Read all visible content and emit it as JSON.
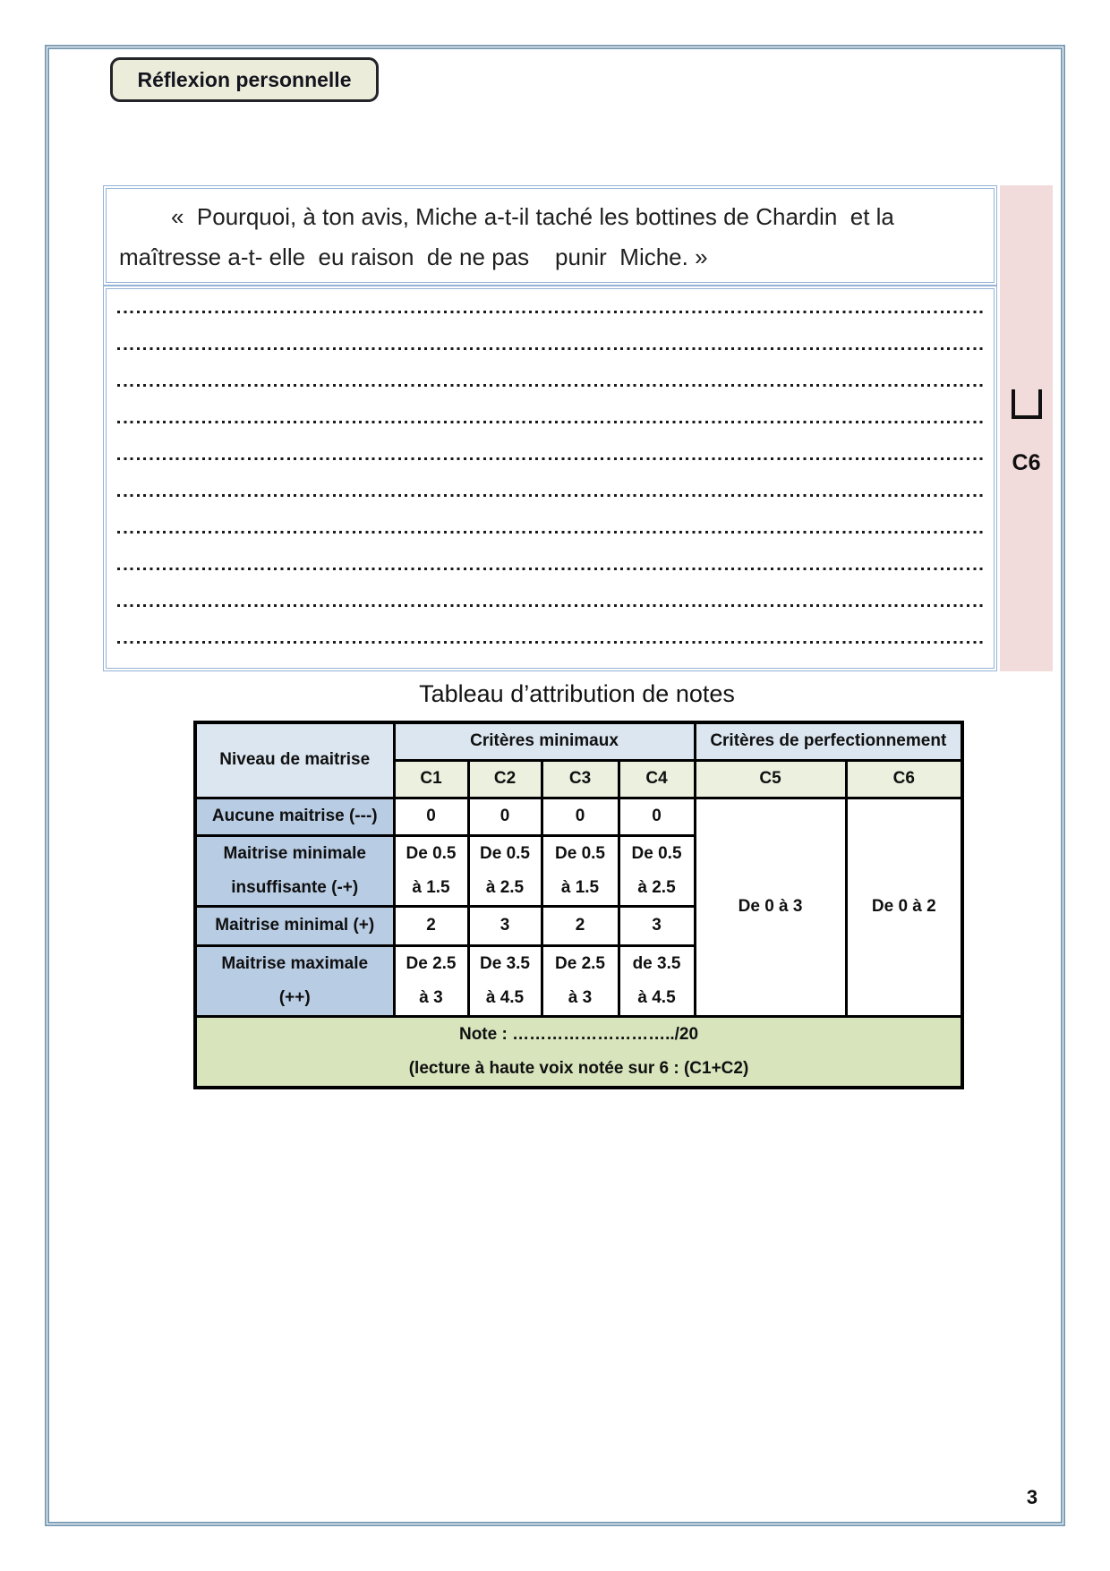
{
  "page": {
    "number": "3"
  },
  "header": {
    "title": "Réflexion personnelle"
  },
  "question": {
    "line1": "«  Pourquoi, à ton avis, Miche a-t-il taché les bottines de Chardin  et la",
    "line2": "maîtresse a-t- elle  eu raison  de ne pas    punir  Miche. »"
  },
  "answer_area": {
    "line_count": 10
  },
  "sidebar": {
    "checkbox_icon": "open-square-checkbox",
    "label": "C6"
  },
  "table": {
    "title": "Tableau d’attribution de notes",
    "col_headers": {
      "niveau": "Niveau de maitrise",
      "minimaux": "Critères minimaux",
      "perfectionnement": "Critères de perfectionnement",
      "c1": "C1",
      "c2": "C2",
      "c3": "C3",
      "c4": "C4",
      "c5": "C5",
      "c6": "C6"
    },
    "rows": [
      {
        "label": [
          "Aucune maitrise (---)"
        ],
        "c": [
          [
            "0"
          ],
          [
            "0"
          ],
          [
            "0"
          ],
          [
            "0"
          ]
        ]
      },
      {
        "label": [
          "Maitrise minimale",
          "insuffisante (-+)"
        ],
        "c": [
          [
            "De 0.5",
            "à 1.5"
          ],
          [
            "De 0.5",
            "à 2.5"
          ],
          [
            "De 0.5",
            "à 1.5"
          ],
          [
            "De 0.5",
            "à 2.5"
          ]
        ]
      },
      {
        "label": [
          "Maitrise minimal (+)"
        ],
        "c": [
          [
            "2"
          ],
          [
            "3"
          ],
          [
            "2"
          ],
          [
            "3"
          ]
        ]
      },
      {
        "label": [
          "Maitrise maximale",
          "(++)"
        ],
        "c": [
          [
            "De 2.5",
            "à 3"
          ],
          [
            "De 3.5",
            "à 4.5"
          ],
          [
            "De 2.5",
            "à 3"
          ],
          [
            "de 3.5",
            "à 4.5"
          ]
        ]
      }
    ],
    "c5_value": "De 0 à 3",
    "c6_value": "De 0 à 2",
    "note_line1": "Note : ………………………../20",
    "note_line2": "(lecture à haute voix notée sur 6 : (C1+C2)"
  },
  "colors": {
    "accent_pink": "#f2dcdb",
    "header_blue": "#dce6f1",
    "label_blue": "#b8cce4",
    "header_green": "#ebf1de",
    "note_green": "#d7e4bc",
    "box_border_blue": "#95b3d7",
    "page_border_blue": "#7f9fb6",
    "title_box_bg": "#ebecda"
  }
}
